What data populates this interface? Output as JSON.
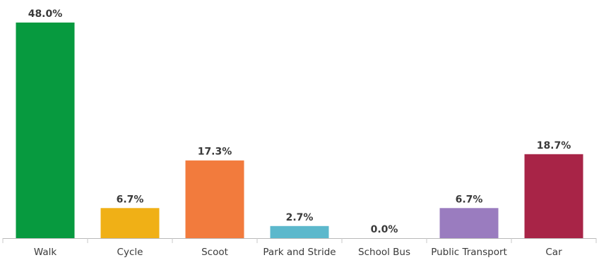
{
  "chart_data": {
    "type": "bar",
    "title": "",
    "xlabel": "",
    "ylabel": "",
    "ylim": [
      0,
      48
    ],
    "grid": false,
    "legend": "none",
    "categories": [
      "Walk",
      "Cycle",
      "Scoot",
      "Park and Stride",
      "School Bus",
      "Public Transport",
      "Car"
    ],
    "values": [
      48.0,
      6.7,
      17.3,
      2.7,
      0.0,
      6.7,
      18.7
    ],
    "value_labels": [
      "48.0%",
      "6.7%",
      "17.3%",
      "2.7%",
      "0.0%",
      "6.7%",
      "18.7%"
    ],
    "colors": [
      "#079a3f",
      "#f0b016",
      "#f27b3d",
      "#5cb8cc",
      "#7a7a7a",
      "#9a7cbf",
      "#a82447"
    ]
  }
}
